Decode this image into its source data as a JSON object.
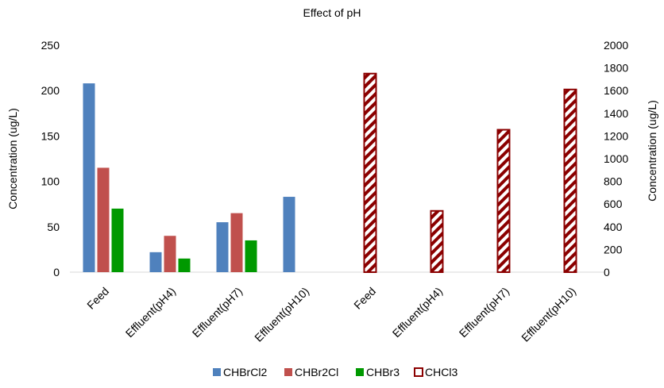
{
  "chart_data": {
    "type": "bar",
    "title": "Effect of pH",
    "ylabel": "Concentration (ug/L)",
    "y2label": "Concentration (ug/L)",
    "ylim": [
      0,
      250
    ],
    "y2lim": [
      0,
      2000
    ],
    "yticks": [
      "0",
      "50",
      "100",
      "150",
      "200",
      "250"
    ],
    "y2ticks": [
      "0",
      "200",
      "400",
      "600",
      "800",
      "1000",
      "1200",
      "1400",
      "1600",
      "1800",
      "2000"
    ],
    "categories": [
      "Feed",
      "Effluent(pH4)",
      "Effluent(pH7)",
      "Effluent(pH10)",
      "Feed",
      "Effluent(pH4)",
      "Effluent(pH7)",
      "Effluent(pH10)"
    ],
    "series": [
      {
        "name": "CHBrCl2",
        "axis": "left",
        "color": "#4f81bd",
        "values": [
          208,
          22,
          55,
          83,
          null,
          null,
          null,
          null
        ]
      },
      {
        "name": "CHBr2Cl",
        "axis": "left",
        "color": "#c0504d",
        "values": [
          115,
          40,
          65,
          null,
          null,
          null,
          null,
          null
        ]
      },
      {
        "name": "CHBr3",
        "axis": "left",
        "color": "#009900",
        "values": [
          70,
          15,
          35,
          null,
          null,
          null,
          null,
          null
        ]
      },
      {
        "name": "CHCl3",
        "axis": "right",
        "color": "#8b0000",
        "pattern": "diagonal-hatch",
        "values": [
          null,
          null,
          null,
          null,
          1750,
          540,
          1255,
          1610
        ]
      }
    ],
    "legend_position": "bottom",
    "grid": false
  }
}
